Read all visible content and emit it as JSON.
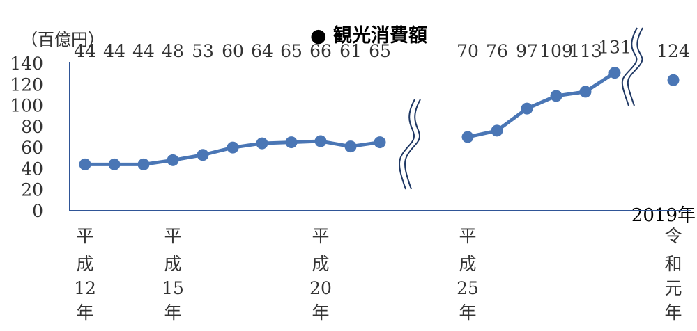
{
  "chart_data": {
    "type": "line",
    "title": "● 観光消費額",
    "unit_label": "（百億円）",
    "y_ticks": [
      0,
      20,
      40,
      60,
      80,
      100,
      120,
      140
    ],
    "ylim": [
      0,
      140
    ],
    "grid": false,
    "series": [
      {
        "values": [
          44,
          44,
          44,
          48,
          53,
          60,
          64,
          65,
          66,
          61,
          65,
          70,
          76,
          97,
          109,
          113,
          131,
          124
        ],
        "labels": [
          "44",
          "44",
          "44",
          "48",
          "53",
          "60",
          "64",
          "65",
          "66",
          "61",
          "65",
          "70",
          "76",
          "97",
          "109",
          "113",
          "131",
          "124"
        ]
      }
    ],
    "segments": [
      [
        0,
        10
      ],
      [
        11,
        16
      ],
      [
        17,
        17
      ]
    ],
    "x_labels": [
      {
        "index": 0,
        "lines": [
          "平",
          "成",
          "12",
          "年"
        ]
      },
      {
        "index": 3,
        "lines": [
          "平",
          "成",
          "15",
          "年"
        ]
      },
      {
        "index": 8,
        "lines": [
          "平",
          "成",
          "20",
          "年"
        ]
      },
      {
        "index": 11,
        "lines": [
          "平",
          "成",
          "25",
          "年"
        ]
      },
      {
        "index": 17,
        "lines": [
          "令",
          "和",
          "元",
          "年"
        ]
      }
    ],
    "extra_label": "2019年",
    "colors": {
      "series": "#4a76b5",
      "axis": "#2f5597",
      "break": "#1f3864",
      "text": "#333333"
    }
  }
}
